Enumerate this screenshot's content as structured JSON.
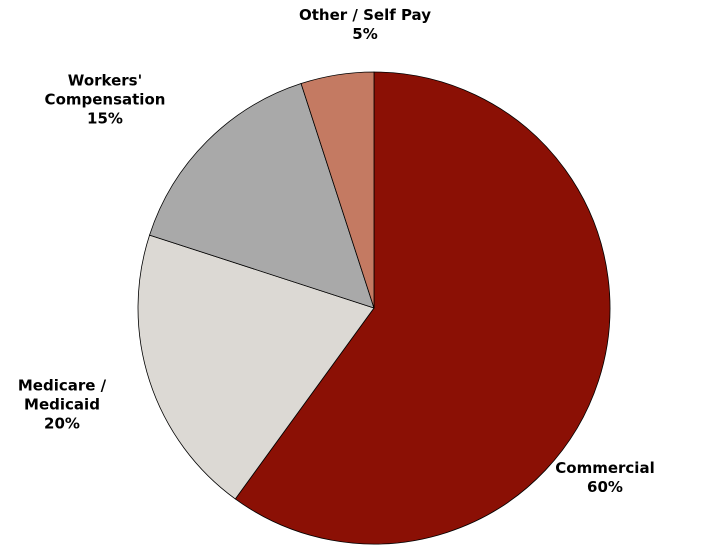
{
  "chart_data": {
    "type": "pie",
    "categories": [
      "Commercial",
      "Medicare /\nMedicaid",
      "Workers'\nCompensation",
      "Other / Self Pay"
    ],
    "values": [
      60,
      20,
      15,
      5
    ],
    "value_labels": [
      "60%",
      "20%",
      "15%",
      "5%"
    ],
    "colors": [
      "#8b1005",
      "#dcd9d4",
      "#a9a9a9",
      "#c47a62"
    ]
  }
}
